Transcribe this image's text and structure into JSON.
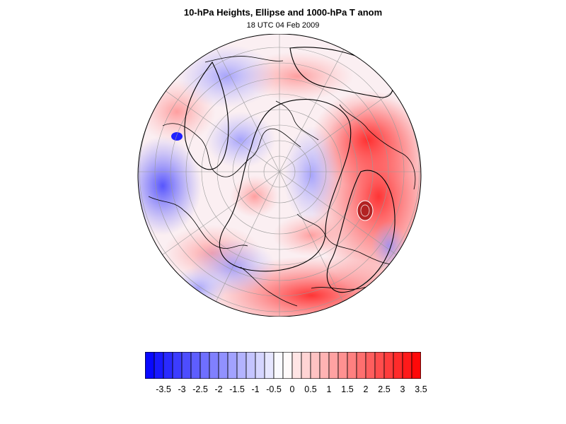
{
  "title": "10-hPa Heights, Ellipse and 1000-hPa T anom",
  "subtitle": "18 UTC 04 Feb 2009",
  "colorbar": {
    "labels": [
      "-3.5",
      "-3",
      "-2.5",
      "-2",
      "-1.5",
      "-1",
      "-0.5",
      "0",
      "0.5",
      "1",
      "1.5",
      "2",
      "2.5",
      "3",
      "3.5"
    ],
    "min_color": "#0000ff",
    "mid_color": "#ffffff",
    "max_color": "#ff0000",
    "segments": 30
  },
  "map": {
    "projection": "orthographic north polar",
    "field": "1000-hPa temperature anomaly",
    "contours": "10-hPa geopotential heights",
    "ellipse_color": "#b22222",
    "coastline_color": "#000000",
    "grid_color": "#9a9a9a"
  }
}
